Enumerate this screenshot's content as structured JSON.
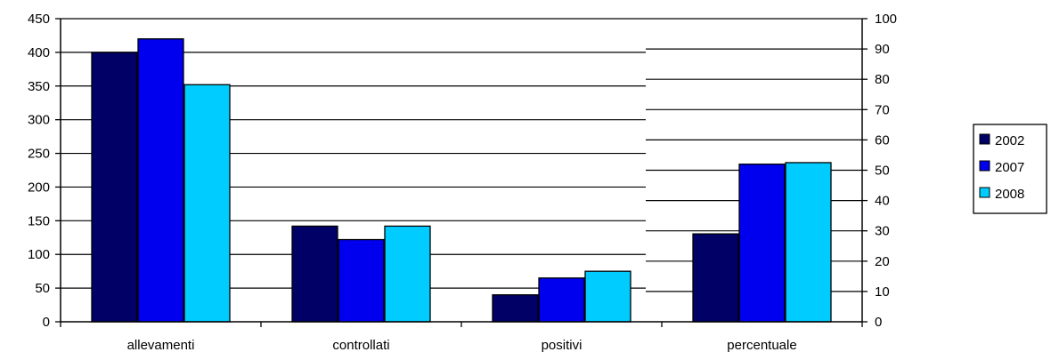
{
  "chart_data": {
    "type": "bar",
    "categories": [
      "allevamenti",
      "controllati",
      "positivi",
      "percentuale"
    ],
    "series": [
      {
        "name": "2002",
        "values": [
          400,
          142,
          40,
          29
        ],
        "color": "#000066"
      },
      {
        "name": "2007",
        "values": [
          420,
          122,
          65,
          52
        ],
        "color": "#0000ee"
      },
      {
        "name": "2008",
        "values": [
          352,
          142,
          75,
          52.5
        ],
        "color": "#00ccff"
      }
    ],
    "left_axis": {
      "ylim": [
        0,
        450
      ],
      "ticks": [
        "0",
        "50",
        "100",
        "150",
        "200",
        "250",
        "300",
        "350",
        "400",
        "450"
      ],
      "categories": [
        "allevamenti",
        "controllati",
        "positivi"
      ]
    },
    "right_axis": {
      "ylim": [
        0,
        100
      ],
      "ticks": [
        "0",
        "10",
        "20",
        "30",
        "40",
        "50",
        "60",
        "70",
        "80",
        "90",
        "100"
      ],
      "categories": [
        "percentuale"
      ]
    },
    "grid": true,
    "legend": {
      "position": "right",
      "entries": [
        "2002",
        "2007",
        "2008"
      ]
    }
  }
}
